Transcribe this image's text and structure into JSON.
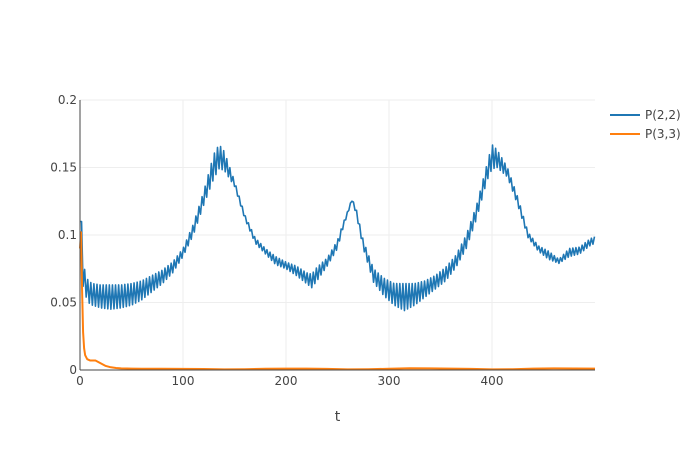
{
  "chart_data": {
    "type": "line",
    "title": "",
    "xlabel": "t",
    "ylabel": "",
    "xlim": [
      0,
      500
    ],
    "ylim": [
      0,
      0.2
    ],
    "x_ticks": [
      0,
      100,
      200,
      300,
      400
    ],
    "x_tick_labels": [
      "0",
      "100",
      "200",
      "300",
      "400"
    ],
    "y_ticks": [
      0,
      0.05,
      0.1,
      0.15,
      0.2
    ],
    "y_tick_labels": [
      "0",
      "0.05",
      "0.1",
      "0.15",
      "0.2"
    ],
    "grid": true,
    "legend_position": "top-right",
    "series": [
      {
        "name": "P(2,2)",
        "color": "#1f77b4",
        "band": true,
        "x": [
          0,
          1,
          2,
          3,
          5,
          8,
          12,
          20,
          30,
          40,
          50,
          60,
          70,
          80,
          90,
          100,
          110,
          120,
          130,
          135,
          140,
          150,
          160,
          170,
          180,
          190,
          200,
          210,
          220,
          225,
          230,
          240,
          250,
          255,
          260,
          264,
          268,
          275,
          285,
          295,
          305,
          315,
          325,
          335,
          345,
          355,
          365,
          375,
          385,
          395,
          400,
          405,
          415,
          425,
          435,
          445,
          455,
          465,
          475,
          485,
          495,
          500
        ],
        "upper": [
          0.112,
          0.116,
          0.104,
          0.082,
          0.072,
          0.066,
          0.064,
          0.063,
          0.063,
          0.063,
          0.064,
          0.066,
          0.07,
          0.074,
          0.08,
          0.09,
          0.108,
          0.132,
          0.16,
          0.167,
          0.162,
          0.14,
          0.115,
          0.098,
          0.09,
          0.084,
          0.08,
          0.077,
          0.072,
          0.071,
          0.076,
          0.083,
          0.096,
          0.108,
          0.118,
          0.127,
          0.12,
          0.096,
          0.075,
          0.068,
          0.064,
          0.064,
          0.064,
          0.066,
          0.07,
          0.076,
          0.085,
          0.1,
          0.122,
          0.152,
          0.167,
          0.163,
          0.15,
          0.128,
          0.102,
          0.092,
          0.088,
          0.082,
          0.09,
          0.091,
          0.097,
          0.099
        ],
        "lower": [
          0.11,
          0.105,
          0.088,
          0.062,
          0.056,
          0.05,
          0.048,
          0.046,
          0.045,
          0.046,
          0.048,
          0.052,
          0.058,
          0.064,
          0.072,
          0.084,
          0.1,
          0.122,
          0.142,
          0.149,
          0.148,
          0.136,
          0.112,
          0.094,
          0.086,
          0.078,
          0.075,
          0.07,
          0.064,
          0.061,
          0.066,
          0.077,
          0.09,
          0.104,
          0.116,
          0.125,
          0.116,
          0.09,
          0.065,
          0.055,
          0.048,
          0.044,
          0.048,
          0.054,
          0.06,
          0.066,
          0.076,
          0.09,
          0.112,
          0.14,
          0.149,
          0.15,
          0.143,
          0.122,
          0.098,
          0.088,
          0.082,
          0.079,
          0.084,
          0.086,
          0.092,
          0.094
        ]
      },
      {
        "name": "P(3,3)",
        "color": "#ff7f0e",
        "band": false,
        "x": [
          0,
          1,
          2,
          3,
          4,
          5,
          7,
          10,
          15,
          20,
          25,
          30,
          35,
          40,
          50,
          60,
          80,
          100,
          120,
          140,
          160,
          180,
          200,
          220,
          240,
          260,
          280,
          300,
          320,
          340,
          360,
          380,
          400,
          420,
          440,
          460,
          480,
          500
        ],
        "y": [
          0.09,
          0.102,
          0.06,
          0.028,
          0.016,
          0.011,
          0.008,
          0.007,
          0.007,
          0.005,
          0.003,
          0.002,
          0.0015,
          0.0012,
          0.001,
          0.0009,
          0.0009,
          0.0008,
          0.0007,
          0.0005,
          0.0006,
          0.0009,
          0.001,
          0.001,
          0.0008,
          0.0005,
          0.0006,
          0.0009,
          0.0013,
          0.0012,
          0.001,
          0.0008,
          0.0005,
          0.0006,
          0.001,
          0.0012,
          0.0011,
          0.001
        ]
      }
    ]
  }
}
